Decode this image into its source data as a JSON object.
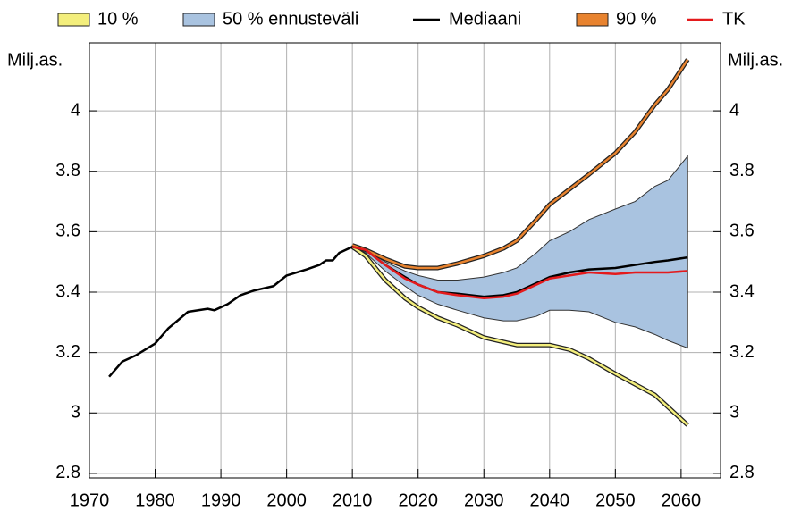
{
  "chart_data": {
    "type": "line",
    "y_label": "Milj.as.",
    "xlim": [
      1970,
      2066
    ],
    "xticks": [
      1970,
      1980,
      1990,
      2000,
      2010,
      2020,
      2030,
      2040,
      2050,
      2060
    ],
    "ylim": [
      2.785,
      4.225
    ],
    "yticks": [
      2.8,
      3,
      3.2,
      3.4,
      3.6,
      3.8,
      4
    ],
    "grid": true,
    "legend": "top",
    "series": [
      {
        "name": "10 %",
        "kind": "line-outlined",
        "color": "#f3ee7c",
        "x": [
          2010,
          2012,
          2015,
          2018,
          2020,
          2023,
          2026,
          2030,
          2033,
          2035,
          2038,
          2040,
          2043,
          2046,
          2050,
          2053,
          2056,
          2058,
          2061
        ],
        "values": [
          3.55,
          3.52,
          3.44,
          3.38,
          3.35,
          3.315,
          3.29,
          3.25,
          3.235,
          3.225,
          3.225,
          3.225,
          3.21,
          3.18,
          3.13,
          3.095,
          3.06,
          3.02,
          2.96
        ]
      },
      {
        "name": "50 % ennusteväli",
        "kind": "band",
        "color": "#a9c3e0",
        "x": [
          2010,
          2012,
          2015,
          2018,
          2020,
          2023,
          2026,
          2030,
          2033,
          2035,
          2038,
          2040,
          2043,
          2046,
          2050,
          2053,
          2056,
          2058,
          2061
        ],
        "lower": [
          3.55,
          3.53,
          3.47,
          3.42,
          3.39,
          3.36,
          3.34,
          3.315,
          3.305,
          3.305,
          3.32,
          3.34,
          3.34,
          3.335,
          3.3,
          3.285,
          3.26,
          3.24,
          3.215
        ],
        "upper": [
          3.555,
          3.54,
          3.5,
          3.47,
          3.455,
          3.44,
          3.44,
          3.45,
          3.465,
          3.48,
          3.53,
          3.57,
          3.6,
          3.64,
          3.675,
          3.7,
          3.75,
          3.77,
          3.85
        ]
      },
      {
        "name": "Mediaani",
        "kind": "line",
        "color": "#000000",
        "x": [
          1973,
          1975,
          1977,
          1980,
          1982,
          1985,
          1988,
          1989,
          1991,
          1993,
          1995,
          1998,
          2000,
          2003,
          2005,
          2006,
          2007,
          2008,
          2010,
          2012,
          2015,
          2018,
          2020,
          2023,
          2026,
          2030,
          2033,
          2035,
          2038,
          2040,
          2043,
          2046,
          2050,
          2053,
          2056,
          2058,
          2061
        ],
        "values": [
          3.12,
          3.17,
          3.19,
          3.23,
          3.28,
          3.335,
          3.345,
          3.34,
          3.36,
          3.39,
          3.405,
          3.42,
          3.455,
          3.475,
          3.49,
          3.505,
          3.505,
          3.53,
          3.55,
          3.54,
          3.49,
          3.45,
          3.425,
          3.4,
          3.395,
          3.385,
          3.39,
          3.4,
          3.43,
          3.45,
          3.465,
          3.475,
          3.48,
          3.49,
          3.5,
          3.505,
          3.515
        ]
      },
      {
        "name": "90 %",
        "kind": "line-outlined",
        "color": "#e8832f",
        "x": [
          2010,
          2012,
          2015,
          2018,
          2020,
          2023,
          2026,
          2030,
          2033,
          2035,
          2038,
          2040,
          2043,
          2046,
          2050,
          2053,
          2056,
          2058,
          2061
        ],
        "values": [
          3.555,
          3.54,
          3.51,
          3.485,
          3.48,
          3.48,
          3.495,
          3.52,
          3.545,
          3.57,
          3.64,
          3.69,
          3.74,
          3.79,
          3.86,
          3.93,
          4.02,
          4.07,
          4.17
        ]
      },
      {
        "name": "TK",
        "kind": "line",
        "color": "#e41a1c",
        "x": [
          2010,
          2012,
          2015,
          2018,
          2020,
          2023,
          2026,
          2030,
          2033,
          2035,
          2038,
          2040,
          2043,
          2046,
          2050,
          2053,
          2056,
          2058,
          2061
        ],
        "values": [
          3.55,
          3.54,
          3.49,
          3.445,
          3.425,
          3.4,
          3.39,
          3.38,
          3.385,
          3.395,
          3.425,
          3.445,
          3.455,
          3.465,
          3.46,
          3.465,
          3.465,
          3.465,
          3.47
        ]
      }
    ]
  }
}
